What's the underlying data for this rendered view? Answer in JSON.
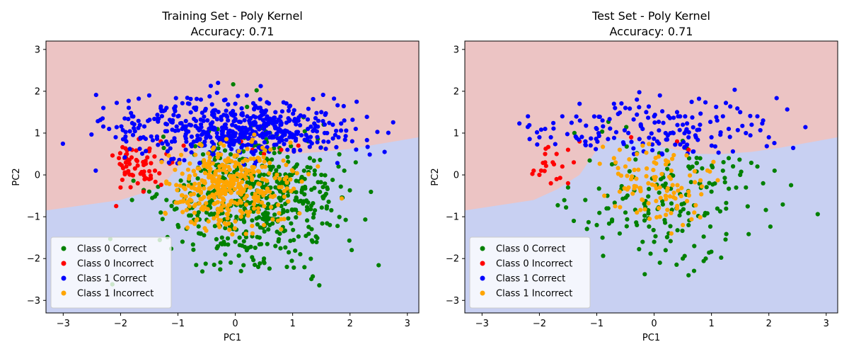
{
  "colors": {
    "region_upper": "#ecc4c4",
    "region_lower": "#c8d0f2",
    "class0_correct": "#008000",
    "class0_incorrect": "#ff0000",
    "class1_correct": "#0000ff",
    "class1_incorrect": "#ffa500"
  },
  "chart_data": [
    {
      "type": "scatter",
      "title": "Training Set - Poly Kernel",
      "subtitle": "Accuracy: 0.71",
      "xlabel": "PC1",
      "ylabel": "PC2",
      "xlim": [
        -3.3,
        3.2
      ],
      "ylim": [
        -3.3,
        3.2
      ],
      "xticks": [
        "−3",
        "−2",
        "−1",
        "0",
        "1",
        "2",
        "3"
      ],
      "yticks": [
        "−3",
        "−2",
        "−1",
        "0",
        "1",
        "2",
        "3"
      ],
      "legend_position": "lower-left",
      "background": "decision regions, upper region red-tinted, lower region blue-tinted",
      "decision_boundary": [
        [
          -3.3,
          -0.85
        ],
        [
          -2.0,
          -0.6
        ],
        [
          -1.3,
          -0.3
        ],
        [
          -0.9,
          0.35
        ],
        [
          -0.5,
          0.75
        ],
        [
          0.0,
          0.72
        ],
        [
          0.5,
          0.55
        ],
        [
          1.0,
          0.5
        ],
        [
          1.5,
          0.55
        ],
        [
          2.0,
          0.62
        ],
        [
          3.2,
          0.9
        ]
      ],
      "series": [
        {
          "name": "Class 0 Correct",
          "color": "#008000",
          "approx_count": 560,
          "center": [
            0.3,
            -0.6
          ],
          "spread": [
            0.75,
            0.75
          ],
          "points": [
            [
              0.2,
              -1.8
            ],
            [
              0.5,
              -2.0
            ],
            [
              0.0,
              -1.6
            ],
            [
              0.4,
              -2.2
            ],
            [
              -0.3,
              -1.2
            ],
            [
              -0.8,
              -0.8
            ],
            [
              -1.2,
              -0.6
            ],
            [
              -1.5,
              -0.4
            ],
            [
              -1.8,
              -0.6
            ],
            [
              -1.0,
              -1.2
            ],
            [
              -0.5,
              -0.9
            ],
            [
              0.8,
              -0.2
            ],
            [
              1.2,
              0.1
            ],
            [
              1.5,
              0.0
            ],
            [
              1.8,
              0.2
            ],
            [
              2.1,
              0.3
            ],
            [
              1.6,
              -0.3
            ],
            [
              1.0,
              -0.4
            ],
            [
              0.6,
              0.2
            ],
            [
              0.3,
              0.0
            ],
            [
              0.9,
              -2.2
            ],
            [
              0.7,
              -1.7
            ],
            [
              -0.2,
              -1.6
            ],
            [
              0.1,
              -2.3
            ],
            [
              -0.6,
              -1.4
            ],
            [
              -1.3,
              -0.9
            ],
            [
              1.3,
              0.4
            ],
            [
              1.9,
              0.1
            ],
            [
              0.6,
              -1.2
            ],
            [
              0.2,
              -0.3
            ]
          ]
        },
        {
          "name": "Class 0 Incorrect",
          "color": "#ff0000",
          "approx_count": 75,
          "center": [
            -1.7,
            0.3
          ],
          "spread": [
            0.25,
            0.3
          ],
          "points": [
            [
              -2.0,
              -0.3
            ],
            [
              -1.8,
              0.0
            ],
            [
              -1.6,
              0.3
            ],
            [
              -1.9,
              0.4
            ],
            [
              -1.5,
              0.6
            ],
            [
              -1.3,
              0.8
            ],
            [
              -1.7,
              -0.2
            ],
            [
              -1.4,
              0.1
            ],
            [
              -1.2,
              0.5
            ],
            [
              -1.6,
              -0.4
            ],
            [
              -1.9,
              0.2
            ],
            [
              -1.1,
              0.3
            ],
            [
              -0.9,
              0.7
            ],
            [
              -1.8,
              0.6
            ],
            [
              -1.5,
              -0.1
            ],
            [
              0.8,
              0.6
            ],
            [
              0.5,
              0.5
            ],
            [
              0.1,
              0.8
            ],
            [
              1.1,
              0.7
            ],
            [
              0.3,
              0.6
            ]
          ]
        },
        {
          "name": "Class 1 Correct",
          "color": "#0000ff",
          "approx_count": 550,
          "center": [
            0.0,
            1.1
          ],
          "spread": [
            1.1,
            0.35
          ],
          "points": [
            [
              -2.2,
              1.1
            ],
            [
              -1.8,
              1.4
            ],
            [
              -1.5,
              1.9
            ],
            [
              -1.2,
              1.6
            ],
            [
              -0.8,
              1.2
            ],
            [
              -0.4,
              1.5
            ],
            [
              0.0,
              1.3
            ],
            [
              0.4,
              1.6
            ],
            [
              0.8,
              1.2
            ],
            [
              1.2,
              1.4
            ],
            [
              1.6,
              1.0
            ],
            [
              1.9,
              1.3
            ],
            [
              2.1,
              1.1
            ],
            [
              -0.3,
              2.2
            ],
            [
              0.2,
              1.9
            ],
            [
              1.0,
              0.9
            ],
            [
              1.5,
              1.5
            ],
            [
              -1.6,
              0.9
            ],
            [
              -1.9,
              0.8
            ],
            [
              0.6,
              0.9
            ],
            [
              1.3,
              0.8
            ],
            [
              -0.6,
              1.8
            ],
            [
              -1.0,
              1.4
            ],
            [
              0.5,
              1.1
            ],
            [
              1.8,
              0.9
            ],
            [
              -2.3,
              1.6
            ],
            [
              0.0,
              1.7
            ],
            [
              -0.5,
              1.0
            ],
            [
              1.1,
              1.3
            ],
            [
              1.7,
              1.2
            ]
          ]
        },
        {
          "name": "Class 1 Incorrect",
          "color": "#ffa500",
          "approx_count": 380,
          "center": [
            -0.1,
            -0.3
          ],
          "spread": [
            0.5,
            0.5
          ],
          "points": [
            [
              -0.3,
              0.5
            ],
            [
              -0.5,
              0.2
            ],
            [
              -0.1,
              -0.2
            ],
            [
              0.2,
              -0.5
            ],
            [
              0.4,
              -0.8
            ],
            [
              0.1,
              -1.0
            ],
            [
              -0.2,
              -0.6
            ],
            [
              -0.6,
              -0.4
            ],
            [
              0.3,
              0.1
            ],
            [
              0.0,
              0.3
            ],
            [
              -0.4,
              -0.1
            ],
            [
              0.6,
              -0.4
            ],
            [
              0.5,
              -1.2
            ],
            [
              0.3,
              -1.4
            ],
            [
              -0.7,
              0.0
            ],
            [
              -0.9,
              -0.3
            ],
            [
              0.8,
              -1.3
            ],
            [
              -0.2,
              0.7
            ],
            [
              0.1,
              -0.3
            ],
            [
              -0.3,
              -0.9
            ]
          ]
        }
      ]
    },
    {
      "type": "scatter",
      "title": "Test Set - Poly Kernel",
      "subtitle": "Accuracy: 0.71",
      "xlabel": "PC1",
      "ylabel": "PC2",
      "xlim": [
        -3.3,
        3.2
      ],
      "ylim": [
        -3.3,
        3.2
      ],
      "xticks": [
        "−3",
        "−2",
        "−1",
        "0",
        "1",
        "2",
        "3"
      ],
      "yticks": [
        "−3",
        "−2",
        "−1",
        "0",
        "1",
        "2",
        "3"
      ],
      "legend_position": "lower-left",
      "background": "decision regions, upper region red-tinted, lower region blue-tinted",
      "decision_boundary": [
        [
          -3.3,
          -0.85
        ],
        [
          -2.1,
          -0.6
        ],
        [
          -1.7,
          -0.35
        ],
        [
          -1.3,
          0.0
        ],
        [
          -1.0,
          0.6
        ],
        [
          -0.7,
          0.9
        ],
        [
          -0.3,
          0.8
        ],
        [
          0.2,
          0.65
        ],
        [
          0.8,
          0.5
        ],
        [
          1.2,
          0.5
        ],
        [
          1.7,
          0.55
        ],
        [
          2.2,
          0.65
        ],
        [
          3.2,
          0.9
        ]
      ],
      "series": [
        {
          "name": "Class 0 Correct",
          "color": "#008000",
          "approx_count": 180,
          "center": [
            0.3,
            -0.6
          ],
          "spread": [
            0.75,
            0.75
          ],
          "points": [
            [
              0.2,
              -1.8
            ],
            [
              0.5,
              -2.0
            ],
            [
              0.0,
              -1.6
            ],
            [
              0.6,
              -2.4
            ],
            [
              -0.3,
              -1.2
            ],
            [
              -0.8,
              -0.8
            ],
            [
              -1.2,
              -0.6
            ],
            [
              -1.5,
              -0.3
            ],
            [
              -1.4,
              -1.1
            ],
            [
              -1.0,
              -1.2
            ],
            [
              -0.5,
              -0.9
            ],
            [
              0.8,
              -0.2
            ],
            [
              1.2,
              0.1
            ],
            [
              1.5,
              0.0
            ],
            [
              1.8,
              0.2
            ],
            [
              2.1,
              0.1
            ],
            [
              1.6,
              -0.3
            ],
            [
              1.0,
              -0.4
            ],
            [
              0.6,
              0.2
            ],
            [
              0.3,
              0.0
            ],
            [
              0.9,
              -2.0
            ],
            [
              0.7,
              -1.7
            ],
            [
              -0.2,
              -1.6
            ],
            [
              0.1,
              -2.1
            ],
            [
              -0.6,
              -1.4
            ],
            [
              -0.9,
              -1.5
            ],
            [
              1.3,
              0.4
            ],
            [
              1.9,
              -0.2
            ],
            [
              0.6,
              -1.2
            ],
            [
              0.2,
              -0.3
            ]
          ]
        },
        {
          "name": "Class 0 Incorrect",
          "color": "#ff0000",
          "approx_count": 25,
          "center": [
            -1.8,
            0.2
          ],
          "spread": [
            0.2,
            0.25
          ],
          "points": [
            [
              -2.0,
              0.0
            ],
            [
              -1.9,
              0.3
            ],
            [
              -1.7,
              0.5
            ],
            [
              -1.6,
              0.2
            ],
            [
              -1.8,
              -0.2
            ],
            [
              -1.5,
              0.6
            ],
            [
              -1.4,
              0.3
            ],
            [
              -1.7,
              -0.1
            ],
            [
              -2.1,
              0.1
            ],
            [
              -1.3,
              0.8
            ],
            [
              -1.5,
              -0.2
            ],
            [
              -0.4,
              0.9
            ],
            [
              0.4,
              0.8
            ],
            [
              0.6,
              0.6
            ],
            [
              -1.9,
              0.5
            ]
          ]
        },
        {
          "name": "Class 1 Correct",
          "color": "#0000ff",
          "approx_count": 175,
          "center": [
            0.0,
            1.1
          ],
          "spread": [
            1.1,
            0.35
          ],
          "points": [
            [
              -2.2,
              1.4
            ],
            [
              -1.9,
              1.1
            ],
            [
              -1.6,
              1.4
            ],
            [
              -1.3,
              1.7
            ],
            [
              -0.9,
              1.3
            ],
            [
              -0.5,
              1.6
            ],
            [
              0.0,
              1.4
            ],
            [
              0.4,
              1.5
            ],
            [
              0.8,
              1.2
            ],
            [
              1.2,
              1.4
            ],
            [
              1.6,
              1.0
            ],
            [
              1.9,
              1.3
            ],
            [
              2.0,
              0.9
            ],
            [
              -0.3,
              1.8
            ],
            [
              0.1,
              1.9
            ],
            [
              1.0,
              0.9
            ],
            [
              1.5,
              1.5
            ],
            [
              -1.8,
              0.9
            ],
            [
              -1.2,
              0.8
            ],
            [
              0.6,
              0.9
            ],
            [
              1.3,
              1.1
            ],
            [
              -0.7,
              1.7
            ],
            [
              -1.0,
              1.1
            ],
            [
              0.5,
              1.2
            ],
            [
              1.8,
              1.4
            ],
            [
              -2.0,
              0.9
            ],
            [
              -0.2,
              1.1
            ],
            [
              0.2,
              1.0
            ],
            [
              1.1,
              1.3
            ],
            [
              1.7,
              1.2
            ]
          ]
        },
        {
          "name": "Class 1 Incorrect",
          "color": "#ffa500",
          "approx_count": 110,
          "center": [
            0.0,
            -0.2
          ],
          "spread": [
            0.45,
            0.45
          ],
          "points": [
            [
              -0.3,
              0.5
            ],
            [
              -0.5,
              0.2
            ],
            [
              -0.1,
              -0.2
            ],
            [
              0.2,
              -0.5
            ],
            [
              0.4,
              -0.8
            ],
            [
              0.1,
              -1.0
            ],
            [
              -0.2,
              -0.6
            ],
            [
              -0.6,
              -0.4
            ],
            [
              0.3,
              0.1
            ],
            [
              0.0,
              0.3
            ],
            [
              -0.4,
              -0.1
            ],
            [
              0.6,
              -0.4
            ],
            [
              0.5,
              -1.2
            ],
            [
              0.3,
              -1.4
            ],
            [
              -0.6,
              0.6
            ],
            [
              -0.7,
              0.4
            ],
            [
              0.7,
              -0.9
            ],
            [
              -0.2,
              0.7
            ],
            [
              0.1,
              -0.3
            ],
            [
              -0.3,
              -0.9
            ]
          ]
        }
      ]
    }
  ]
}
